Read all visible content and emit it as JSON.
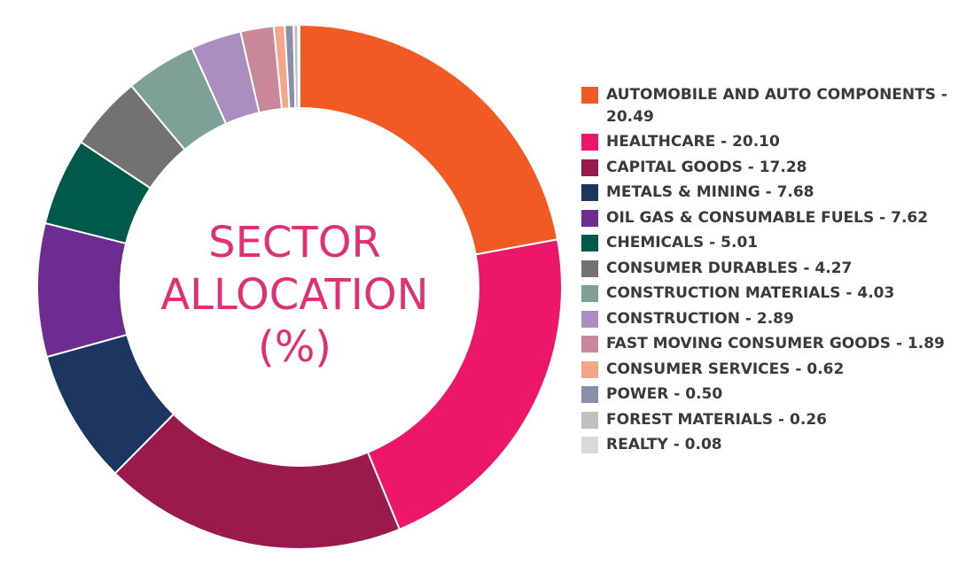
{
  "chart_data": {
    "type": "pie",
    "style": "donut",
    "title_lines": [
      "SECTOR",
      "ALLOCATION",
      "(%)"
    ],
    "legend_position": "right",
    "slices": [
      {
        "label": "AUTOMOBILE AND AUTO COMPONENTS - 20.49",
        "value": 20.49,
        "color": "#f15a22"
      },
      {
        "label": "HEALTHCARE - 20.10",
        "value": 20.1,
        "color": "#ec1768"
      },
      {
        "label": "CAPITAL GOODS - 17.28",
        "value": 17.28,
        "color": "#9b1a4c"
      },
      {
        "label": "METALS & MINING - 7.68",
        "value": 7.68,
        "color": "#1c3661"
      },
      {
        "label": "OIL GAS & CONSUMABLE FUELS - 7.62",
        "value": 7.62,
        "color": "#6e2c91"
      },
      {
        "label": "CHEMICALS - 5.01",
        "value": 5.01,
        "color": "#005a4c"
      },
      {
        "label": "CONSUMER DURABLES - 4.27",
        "value": 4.27,
        "color": "#727272"
      },
      {
        "label": "CONSTRUCTION MATERIALS - 4.03",
        "value": 4.03,
        "color": "#7da196"
      },
      {
        "label": "CONSTRUCTION - 2.89",
        "value": 2.89,
        "color": "#ab8dc2"
      },
      {
        "label": "FAST MOVING CONSUMER GOODS - 1.89",
        "value": 1.89,
        "color": "#c9889a"
      },
      {
        "label": "CONSUMER SERVICES - 0.62",
        "value": 0.62,
        "color": "#f6a589"
      },
      {
        "label": "POWER - 0.50",
        "value": 0.5,
        "color": "#8790a8"
      },
      {
        "label": "FOREST MATERIALS - 0.26",
        "value": 0.26,
        "color": "#c0c0c0"
      },
      {
        "label": "REALTY - 0.08",
        "value": 0.08,
        "color": "#d9d9d9"
      }
    ]
  }
}
